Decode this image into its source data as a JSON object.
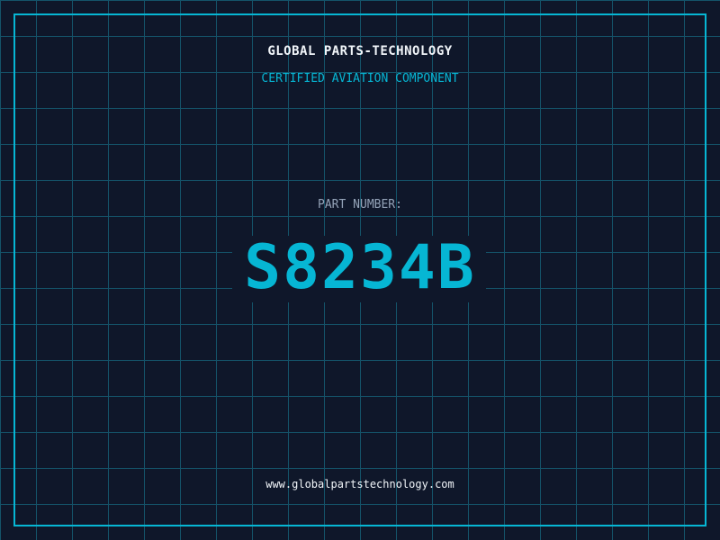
{
  "header": {
    "company": "GLOBAL PARTS-TECHNOLOGY",
    "subtitle": "CERTIFIED AVIATION COMPONENT"
  },
  "part": {
    "label": "PART NUMBER:",
    "number": "S8234B"
  },
  "footer": {
    "url": "www.globalpartstechnology.com"
  },
  "colors": {
    "background": "#0f172a",
    "accent": "#06b6d4",
    "grid": "#155e75"
  }
}
